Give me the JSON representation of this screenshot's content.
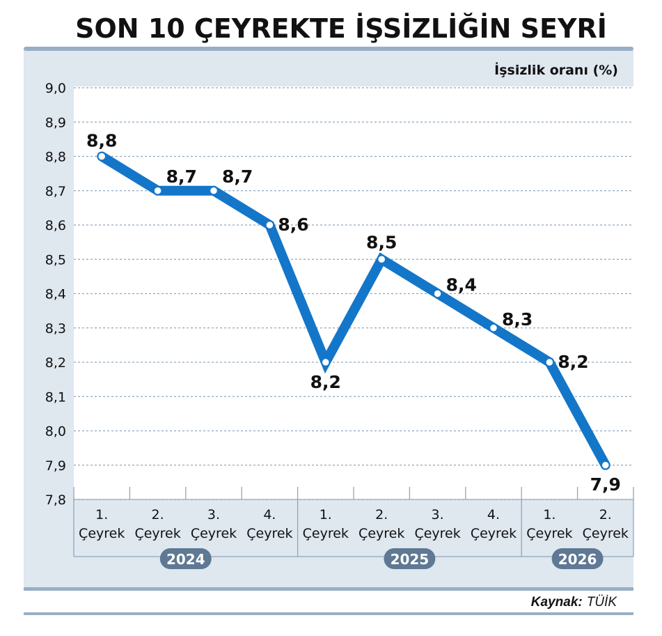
{
  "colors": {
    "panel": "#dfe7ef",
    "panel_border": "#98afc5",
    "line": "#1476c9",
    "grid": "#8fa6bd",
    "year_pill": "#5f7893"
  },
  "chart_data": {
    "type": "line",
    "title": "SON 10 ÇEYREKTE İŞSİZLİĞİN SEYRİ",
    "ylabel": "İşsizlik oranı (%)",
    "ylim": [
      7.8,
      9.0
    ],
    "yticks": [
      "9,0",
      "8,9",
      "8,8",
      "8,7",
      "8,6",
      "8,5",
      "8,4",
      "8,3",
      "8,2",
      "8,1",
      "8,0",
      "7,9",
      "7,8"
    ],
    "grid": true,
    "categories": [
      {
        "num": "1.",
        "word": "Çeyrek"
      },
      {
        "num": "2.",
        "word": "Çeyrek"
      },
      {
        "num": "3.",
        "word": "Çeyrek"
      },
      {
        "num": "4.",
        "word": "Çeyrek"
      },
      {
        "num": "1.",
        "word": "Çeyrek"
      },
      {
        "num": "2.",
        "word": "Çeyrek"
      },
      {
        "num": "3.",
        "word": "Çeyrek"
      },
      {
        "num": "4.",
        "word": "Çeyrek"
      },
      {
        "num": "1.",
        "word": "Çeyrek"
      },
      {
        "num": "2.",
        "word": "Çeyrek"
      }
    ],
    "years": [
      {
        "label": "2024",
        "from": 0,
        "to": 3
      },
      {
        "label": "2025",
        "from": 4,
        "to": 7
      },
      {
        "label": "2026",
        "from": 8,
        "to": 9
      }
    ],
    "values": [
      8.8,
      8.7,
      8.7,
      8.6,
      8.2,
      8.5,
      8.4,
      8.3,
      8.2,
      7.9
    ],
    "value_labels": [
      "8,8",
      "8,7",
      "8,7",
      "8,6",
      "8,2",
      "8,5",
      "8,4",
      "8,3",
      "8,2",
      "7,9"
    ]
  },
  "source": {
    "prefix": "Kaynak:",
    "name": "TÜİK"
  }
}
